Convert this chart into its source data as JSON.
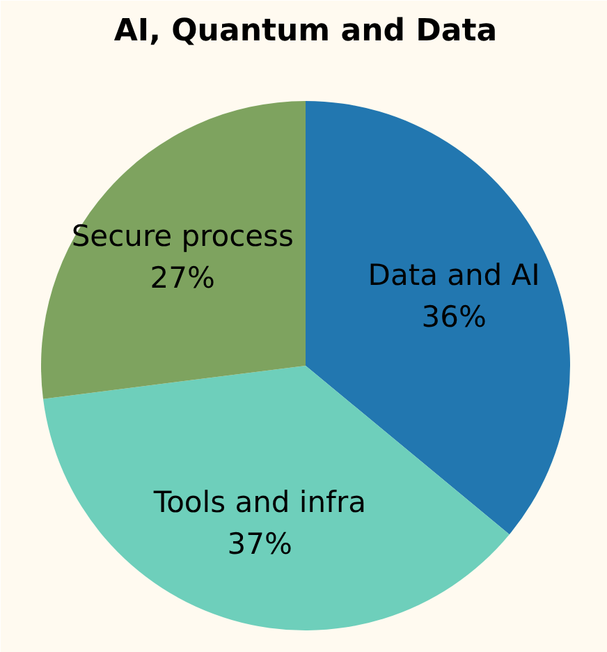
{
  "chart_data": {
    "type": "pie",
    "title": "AI, Quantum and Data",
    "categories": [
      "Data and AI",
      "Tools and infra",
      "Secure process"
    ],
    "values": [
      36,
      37,
      27
    ],
    "colors": [
      "#2277b0",
      "#6ecfbb",
      "#7ea35f"
    ],
    "value_labels": [
      "36%",
      "37%",
      "27%"
    ],
    "legend": false
  }
}
